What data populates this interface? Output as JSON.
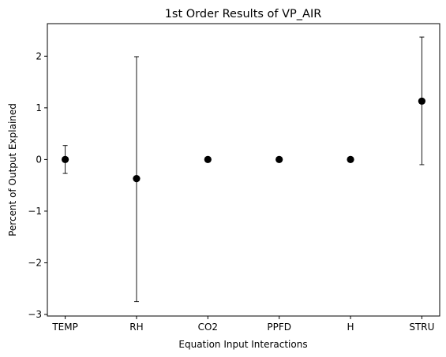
{
  "chart_data": {
    "type": "scatter",
    "title": "1st Order Results of VP_AIR",
    "xlabel": "Equation Input Interactions",
    "ylabel": "Percent of Output Explained",
    "categories": [
      "TEMP",
      "RH",
      "CO2",
      "PPFD",
      "H",
      "STRU"
    ],
    "series": [
      {
        "values": [
          0.0,
          -0.37,
          0.0,
          0.0,
          0.0,
          1.13
        ],
        "error_low": [
          -0.27,
          -2.75,
          0.0,
          0.0,
          0.0,
          -0.1
        ],
        "error_high": [
          0.27,
          1.99,
          0.0,
          0.0,
          0.0,
          2.37
        ]
      }
    ],
    "ylim": [
      -3.03,
      2.63
    ],
    "yticks": [
      -3,
      -2,
      -1,
      0,
      1,
      2
    ],
    "ytick_labels": [
      "−3",
      "−2",
      "−1",
      "0",
      "1",
      "2"
    ],
    "grid": false,
    "legend": "none",
    "marker_color": "#000000"
  }
}
